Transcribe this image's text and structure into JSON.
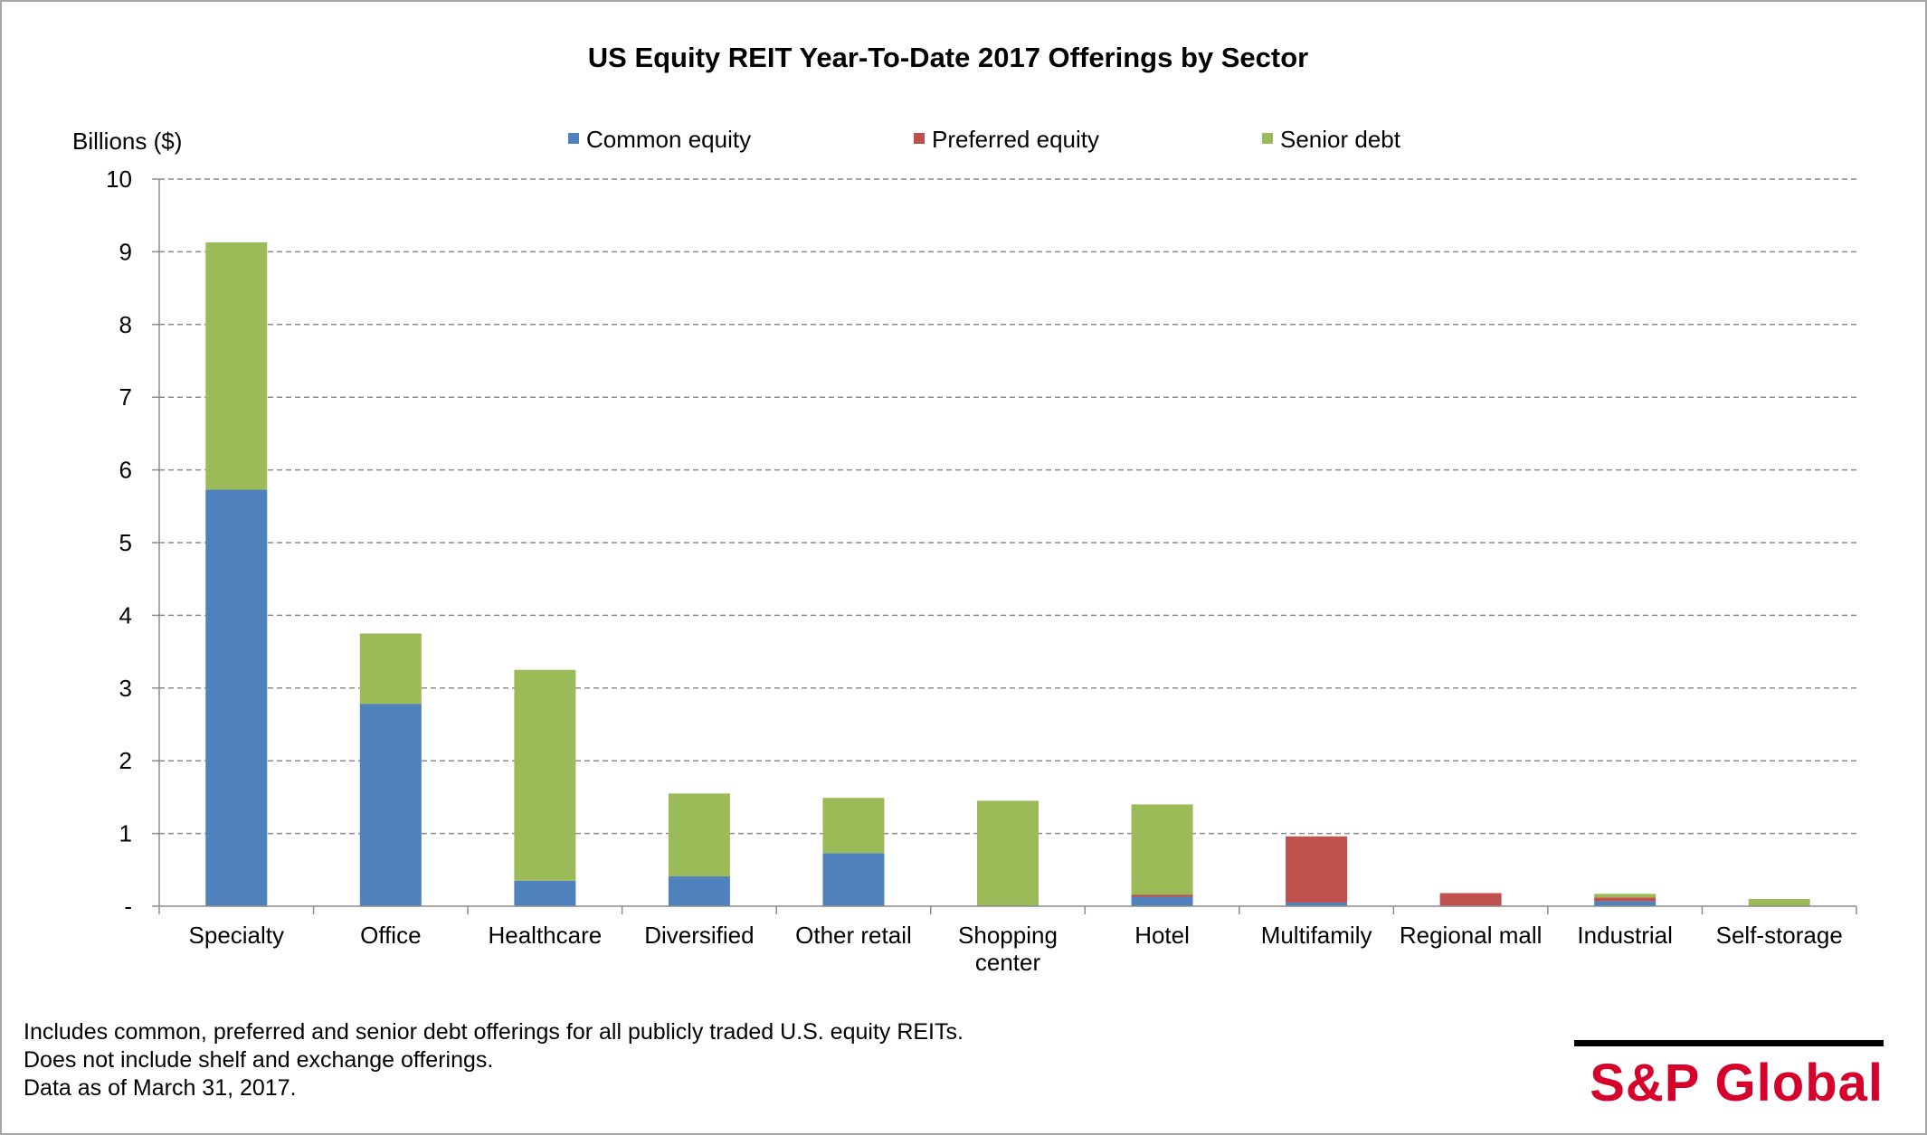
{
  "chart_data": {
    "type": "bar",
    "stacked": true,
    "title": "US Equity REIT Year-To-Date 2017 Offerings by Sector",
    "ylabel": "Billions ($)",
    "ylim": [
      0,
      10
    ],
    "yticks": [
      "-",
      "1",
      "2",
      "3",
      "4",
      "5",
      "6",
      "7",
      "8",
      "9",
      "10"
    ],
    "grid": true,
    "legend_position": "top",
    "categories": [
      [
        "Specialty"
      ],
      [
        "Office"
      ],
      [
        "Healthcare"
      ],
      [
        "Diversified"
      ],
      [
        "Other retail"
      ],
      [
        "Shopping",
        "center"
      ],
      [
        "Hotel"
      ],
      [
        "Multifamily"
      ],
      [
        "Regional mall"
      ],
      [
        "Industrial"
      ],
      [
        "Self-storage"
      ]
    ],
    "series": [
      {
        "name": "Common equity",
        "color": "#4f81bd",
        "values": [
          5.73,
          2.78,
          0.35,
          0.41,
          0.73,
          0.0,
          0.13,
          0.05,
          0.0,
          0.07,
          0.0
        ]
      },
      {
        "name": "Preferred equity",
        "color": "#c0504d",
        "values": [
          0.0,
          0.0,
          0.0,
          0.0,
          0.0,
          0.0,
          0.03,
          0.91,
          0.18,
          0.05,
          0.0
        ]
      },
      {
        "name": "Senior debt",
        "color": "#9bbb59",
        "values": [
          3.4,
          0.97,
          2.9,
          1.14,
          0.76,
          1.45,
          1.24,
          0.0,
          0.0,
          0.05,
          0.1
        ]
      }
    ]
  },
  "footnotes": [
    "Includes common, preferred and senior debt offerings for all publicly traded U.S. equity REITs.",
    "Does not include shelf and exchange offerings.",
    "Data as of March 31, 2017."
  ],
  "logo": {
    "text": "S&P Global"
  }
}
